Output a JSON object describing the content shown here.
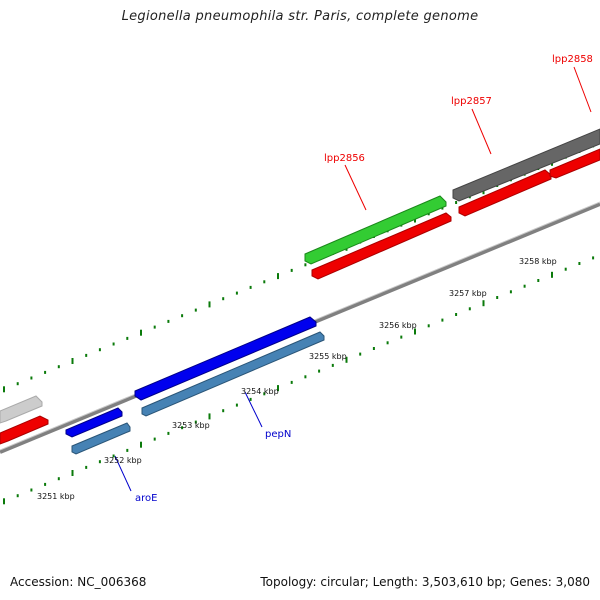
{
  "title": "Legionella pneumophila str. Paris, complete genome",
  "accession": "Accession: NC_006368",
  "summary": "Topology: circular; Length: 3,503,610 bp; Genes: 3,080",
  "colors": {
    "backbone": "#808080",
    "tick": "#0a7a0a",
    "red_gene": "#ee0000",
    "green_gene": "#33cc33",
    "blue_gene": "#0000ee",
    "steel_gene": "#4682b4",
    "gray_gene": "#666666",
    "light_gray_gene": "#cccccc",
    "label_red": "#ee0000",
    "label_blue": "#0000cc"
  },
  "kbp_labels": [
    "3251 kbp",
    "3252 kbp",
    "3253 kbp",
    "3254 kbp",
    "3255 kbp",
    "3256 kbp",
    "3257 kbp",
    "3258 kbp"
  ],
  "gene_labels": {
    "lpp2856": "lpp2856",
    "lpp2857": "lpp2857",
    "lpp2858": "lpp2858",
    "pepN": "pepN",
    "aroE": "aroE"
  }
}
